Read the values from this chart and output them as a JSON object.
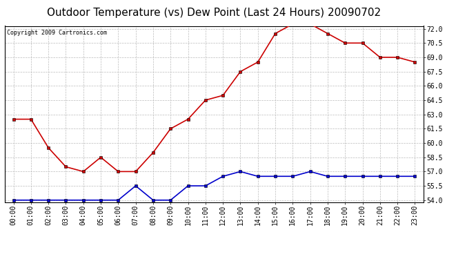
{
  "title": "Outdoor Temperature (vs) Dew Point (Last 24 Hours) 20090702",
  "copyright_text": "Copyright 2009 Cartronics.com",
  "hours": [
    "00:00",
    "01:00",
    "02:00",
    "03:00",
    "04:00",
    "05:00",
    "06:00",
    "07:00",
    "08:00",
    "09:00",
    "10:00",
    "11:00",
    "12:00",
    "13:00",
    "14:00",
    "15:00",
    "16:00",
    "17:00",
    "18:00",
    "19:00",
    "20:00",
    "21:00",
    "22:00",
    "23:00"
  ],
  "temp": [
    62.5,
    62.5,
    59.5,
    57.5,
    57.0,
    58.5,
    57.0,
    57.0,
    59.0,
    61.5,
    62.5,
    64.5,
    65.0,
    67.5,
    68.5,
    71.5,
    72.5,
    72.5,
    71.5,
    70.5,
    70.5,
    69.0,
    69.0,
    68.5
  ],
  "dew": [
    54.0,
    54.0,
    54.0,
    54.0,
    54.0,
    54.0,
    54.0,
    55.5,
    54.0,
    54.0,
    55.5,
    55.5,
    56.5,
    57.0,
    56.5,
    56.5,
    56.5,
    57.0,
    56.5,
    56.5,
    56.5,
    56.5,
    56.5,
    56.5
  ],
  "temp_color": "#cc0000",
  "dew_color": "#0000cc",
  "ylim_min": 53.8,
  "ylim_max": 72.3,
  "yticks": [
    54.0,
    55.5,
    57.0,
    58.5,
    60.0,
    61.5,
    63.0,
    64.5,
    66.0,
    67.5,
    69.0,
    70.5,
    72.0
  ],
  "background_color": "#ffffff",
  "grid_color": "#bbbbbb",
  "title_fontsize": 11,
  "copyright_fontsize": 6,
  "tick_fontsize": 7,
  "marker": "s",
  "marker_size": 3,
  "line_width": 1.2
}
